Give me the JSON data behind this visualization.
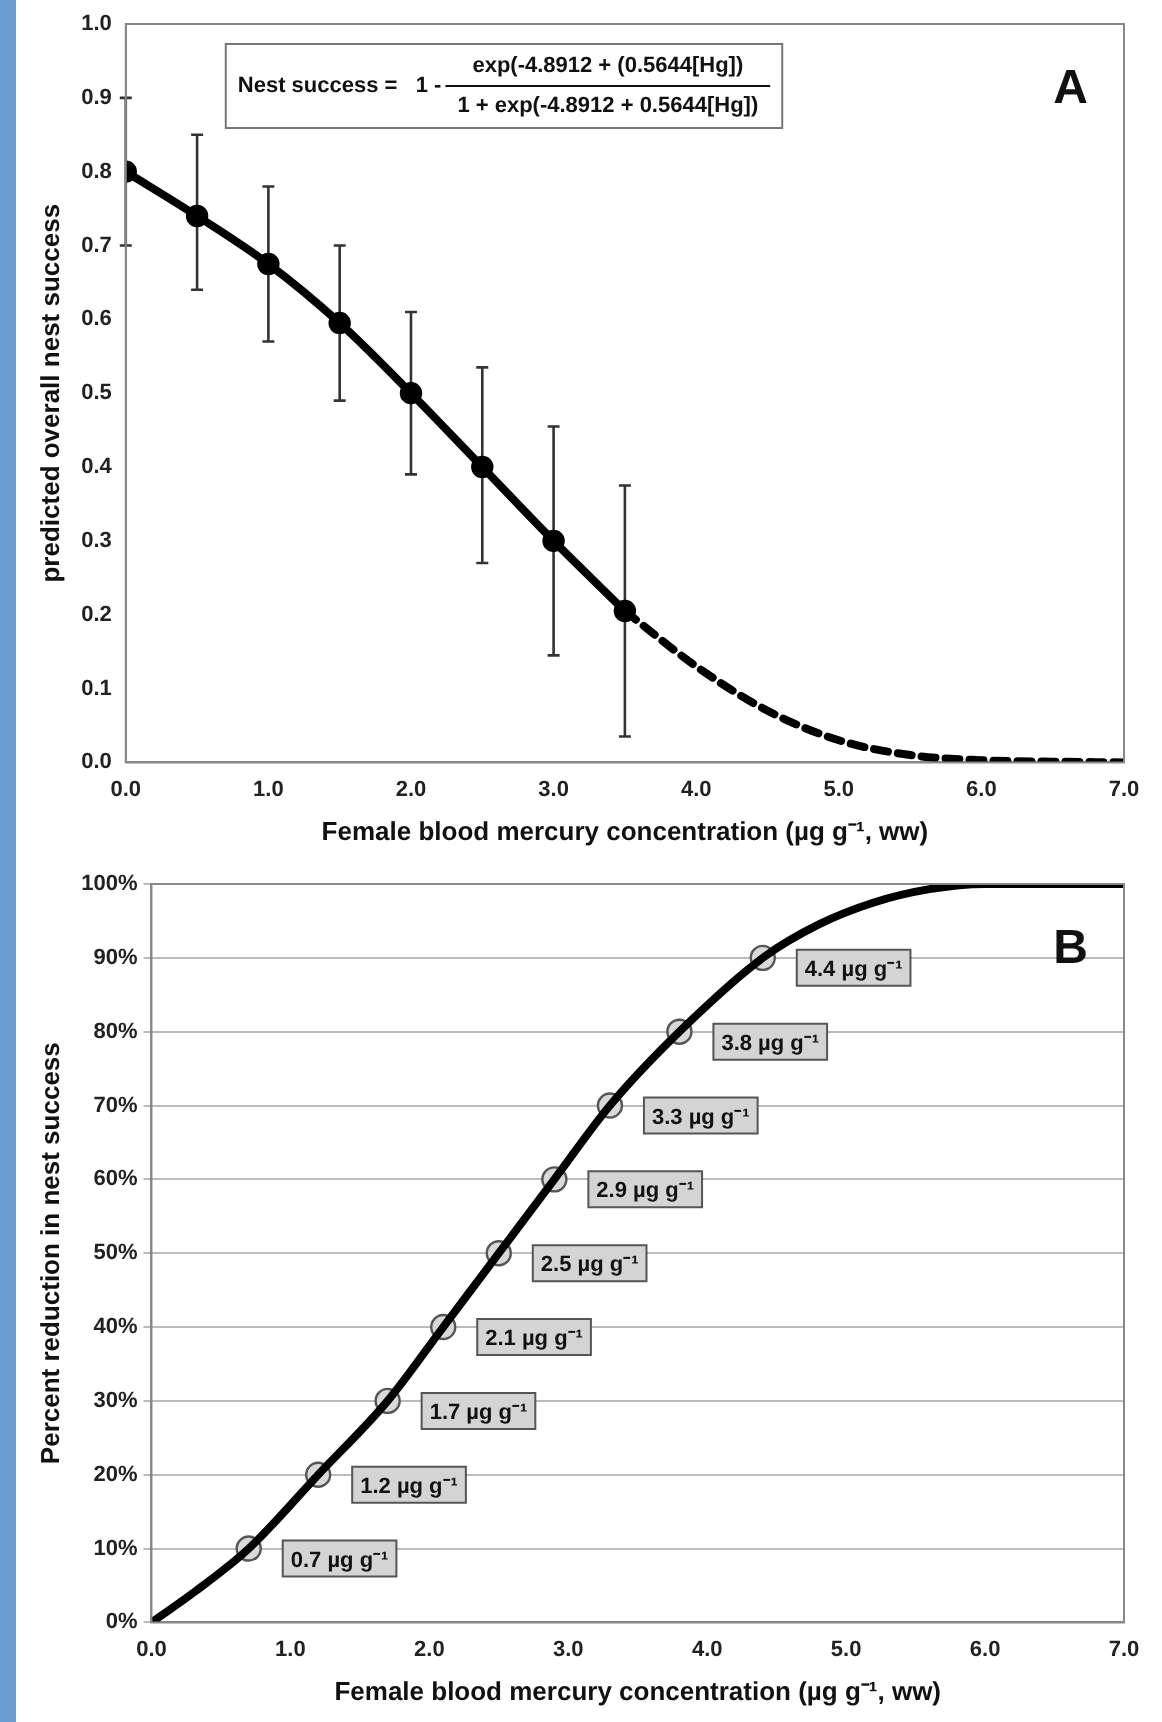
{
  "chart_data": [
    {
      "type": "line",
      "ylabel": "predicted overall nest success",
      "xlabel": "Female blood mercury concentration (µg g⁻¹, ww)",
      "annotations": [
        "Nest success =   1 -",
        "exp(-4.8912 + (0.5644[Hg])",
        "1 + exp(-4.8912 + 0.5644[Hg])",
        "A"
      ],
      "xlim": [
        0,
        7
      ],
      "ylim": [
        0,
        1
      ],
      "xticks": [
        {
          "value": 0,
          "label": "0.0"
        },
        {
          "value": 1,
          "label": "1.0"
        },
        {
          "value": 2,
          "label": "2.0"
        },
        {
          "value": 3,
          "label": "3.0"
        },
        {
          "value": 4,
          "label": "4.0"
        },
        {
          "value": 5,
          "label": "5.0"
        },
        {
          "value": 6,
          "label": "6.0"
        },
        {
          "value": 7,
          "label": "7.0"
        }
      ],
      "yticks": [
        {
          "value": 0,
          "label": "0.0"
        },
        {
          "value": 0.1,
          "label": "0.1"
        },
        {
          "value": 0.2,
          "label": "0.2"
        },
        {
          "value": 0.3,
          "label": "0.3"
        },
        {
          "value": 0.4,
          "label": "0.4"
        },
        {
          "value": 0.5,
          "label": "0.5"
        },
        {
          "value": 0.6,
          "label": "0.6"
        },
        {
          "value": 0.7,
          "label": "0.7"
        },
        {
          "value": 0.8,
          "label": "0.8"
        },
        {
          "value": 0.9,
          "label": "0.9"
        },
        {
          "value": 1,
          "label": "1.0"
        }
      ],
      "grid": false,
      "legend": false,
      "series": [
        {
          "color": "#000000",
          "marker": "circle",
          "line_style": "solid",
          "x": [
            0,
            0.5,
            1,
            1.5,
            2,
            2.5,
            3,
            3.5
          ],
          "values": [
            0.8,
            0.74,
            0.675,
            0.595,
            0.5,
            0.4,
            0.3,
            0.205
          ],
          "errors": [
            [
              0.7,
              0.9
            ],
            [
              0.64,
              0.85
            ],
            [
              0.57,
              0.78
            ],
            [
              0.49,
              0.7
            ],
            [
              0.39,
              0.61
            ],
            [
              0.27,
              0.535
            ],
            [
              0.145,
              0.455
            ],
            [
              0.035,
              0.375
            ]
          ]
        },
        {
          "color": "#000000",
          "marker": "none",
          "line_style": "dashed",
          "x": [
            3.5,
            4,
            4.5,
            5,
            5.5,
            6,
            6.5,
            7
          ],
          "values": [
            0.205,
            0.13,
            0.07,
            0.03,
            0.01,
            0.003,
            0.001,
            0
          ]
        }
      ]
    },
    {
      "type": "line",
      "ylabel": "Percent reduction in nest success",
      "xlabel": "Female blood mercury concentration (µg g⁻¹, ww)",
      "annotations": [
        "B",
        {
          "text": "0.7 µg g⁻¹",
          "x": 0.7,
          "y": 10
        },
        {
          "text": "1.2 µg g⁻¹",
          "x": 1.2,
          "y": 20
        },
        {
          "text": "1.7 µg g⁻¹",
          "x": 1.7,
          "y": 30
        },
        {
          "text": "2.1 µg g⁻¹",
          "x": 2.1,
          "y": 40
        },
        {
          "text": "2.5 µg g⁻¹",
          "x": 2.5,
          "y": 50
        },
        {
          "text": "2.9 µg g⁻¹",
          "x": 2.9,
          "y": 60
        },
        {
          "text": "3.3 µg g⁻¹",
          "x": 3.3,
          "y": 70
        },
        {
          "text": "3.8 µg g⁻¹",
          "x": 3.8,
          "y": 80
        },
        {
          "text": "4.4 µg g⁻¹",
          "x": 4.4,
          "y": 90
        }
      ],
      "xlim": [
        0,
        7
      ],
      "ylim": [
        0,
        100
      ],
      "xticks": [
        {
          "value": 0,
          "label": "0.0"
        },
        {
          "value": 1,
          "label": "1.0"
        },
        {
          "value": 2,
          "label": "2.0"
        },
        {
          "value": 3,
          "label": "3.0"
        },
        {
          "value": 4,
          "label": "4.0"
        },
        {
          "value": 5,
          "label": "5.0"
        },
        {
          "value": 6,
          "label": "6.0"
        },
        {
          "value": 7,
          "label": "7.0"
        }
      ],
      "yticks": [
        {
          "value": 0,
          "label": "0%"
        },
        {
          "value": 10,
          "label": "10%"
        },
        {
          "value": 20,
          "label": "20%"
        },
        {
          "value": 30,
          "label": "30%"
        },
        {
          "value": 40,
          "label": "40%"
        },
        {
          "value": 50,
          "label": "50%"
        },
        {
          "value": 60,
          "label": "60%"
        },
        {
          "value": 70,
          "label": "70%"
        },
        {
          "value": 80,
          "label": "80%"
        },
        {
          "value": 90,
          "label": "90%"
        },
        {
          "value": 100,
          "label": "100%"
        }
      ],
      "grid": "y",
      "legend": false,
      "series": [
        {
          "color": "#000000",
          "marker": "none",
          "line_style": "solid",
          "x": [
            0,
            0.3,
            0.7,
            1.2,
            1.7,
            2.1,
            2.5,
            2.9,
            3.3,
            3.8,
            4.4,
            4.8,
            5.2,
            5.6,
            6,
            7
          ],
          "values": [
            0,
            4,
            10,
            20,
            30,
            40,
            50,
            60,
            70,
            80,
            90,
            94.5,
            97.5,
            99.3,
            100,
            100
          ]
        },
        {
          "type": "scatter",
          "color": "#d9d9d9",
          "marker": "circle",
          "x": [
            0.7,
            1.2,
            1.7,
            2.1,
            2.5,
            2.9,
            3.3,
            3.8,
            4.4
          ],
          "values": [
            10,
            20,
            30,
            40,
            50,
            60,
            70,
            80,
            90
          ]
        }
      ]
    }
  ]
}
